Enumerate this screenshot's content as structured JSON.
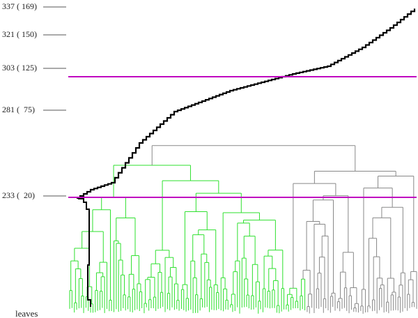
{
  "axis": {
    "levels": [
      "337 ( 169)",
      "321 ( 150)",
      "303 ( 125)",
      "281 (  75)",
      "233 (  20)"
    ],
    "leaves": "leaves"
  }
}
